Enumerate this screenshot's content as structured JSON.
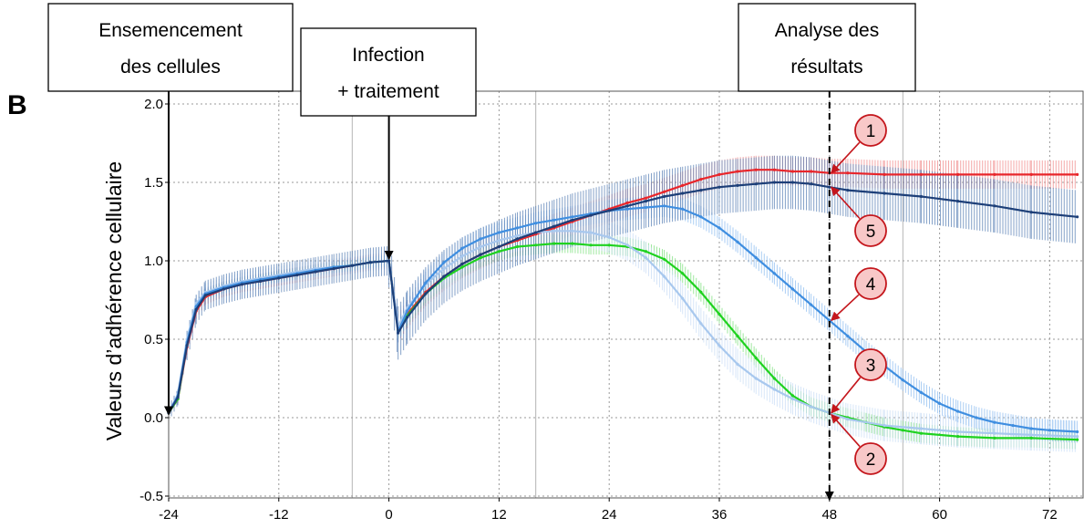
{
  "panel_label": "B",
  "annotations": {
    "seeding": [
      "Ensemencement",
      "des cellules"
    ],
    "infection": [
      "Infection",
      "+ traitement"
    ],
    "analysis": [
      "Analyse des",
      "résultats"
    ]
  },
  "chart_data": {
    "type": "line",
    "title": "",
    "xlabel": "",
    "ylabel": "Valeurs d’adhérence cellulaire",
    "xlim": [
      -24,
      75
    ],
    "ylim": [
      -0.5,
      2.05
    ],
    "xticks": [
      -24,
      -12,
      0,
      12,
      24,
      36,
      48,
      60,
      72
    ],
    "xtick_labels": [
      "-24",
      "-12",
      "0",
      "12",
      "24",
      "36",
      "48",
      "60",
      "72"
    ],
    "yticks": [
      -0.5,
      0.0,
      0.5,
      1.0,
      1.5,
      2.0
    ],
    "ytick_labels": [
      "-0.5",
      "0.0",
      "0.5",
      "1.0",
      "1.5",
      "2.0"
    ],
    "grid": true,
    "event_markers_x": [
      -24,
      0,
      48
    ],
    "series": [
      {
        "label": "1",
        "color": "#e8262b",
        "band_color": "#f08a8a",
        "points": [
          [
            -24,
            0.03
          ],
          [
            -23,
            0.12
          ],
          [
            -22,
            0.45
          ],
          [
            -21,
            0.68
          ],
          [
            -20,
            0.77
          ],
          [
            -18,
            0.82
          ],
          [
            -16,
            0.85
          ],
          [
            -14,
            0.87
          ],
          [
            -12,
            0.89
          ],
          [
            -10,
            0.91
          ],
          [
            -8,
            0.93
          ],
          [
            -6,
            0.95
          ],
          [
            -4,
            0.97
          ],
          [
            -2,
            0.99
          ],
          [
            0,
            1.0
          ],
          [
            1,
            0.57
          ],
          [
            2,
            0.66
          ],
          [
            4,
            0.8
          ],
          [
            6,
            0.9
          ],
          [
            8,
            0.98
          ],
          [
            10,
            1.04
          ],
          [
            12,
            1.09
          ],
          [
            14,
            1.13
          ],
          [
            16,
            1.17
          ],
          [
            18,
            1.21
          ],
          [
            20,
            1.25
          ],
          [
            22,
            1.29
          ],
          [
            24,
            1.33
          ],
          [
            26,
            1.37
          ],
          [
            28,
            1.4
          ],
          [
            30,
            1.44
          ],
          [
            32,
            1.48
          ],
          [
            34,
            1.52
          ],
          [
            36,
            1.55
          ],
          [
            38,
            1.57
          ],
          [
            40,
            1.58
          ],
          [
            42,
            1.58
          ],
          [
            44,
            1.57
          ],
          [
            46,
            1.57
          ],
          [
            48,
            1.56
          ],
          [
            50,
            1.56
          ],
          [
            54,
            1.55
          ],
          [
            58,
            1.55
          ],
          [
            62,
            1.55
          ],
          [
            66,
            1.55
          ],
          [
            70,
            1.55
          ],
          [
            75,
            1.55
          ]
        ],
        "err": 0.09
      },
      {
        "label": "2",
        "color": "#1fd21f",
        "band_color": "#7fe07f",
        "points": [
          [
            -24,
            0.03
          ],
          [
            -23,
            0.12
          ],
          [
            -22,
            0.47
          ],
          [
            -21,
            0.7
          ],
          [
            -20,
            0.78
          ],
          [
            -18,
            0.83
          ],
          [
            -16,
            0.86
          ],
          [
            -14,
            0.88
          ],
          [
            -12,
            0.9
          ],
          [
            -10,
            0.92
          ],
          [
            -8,
            0.94
          ],
          [
            -6,
            0.96
          ],
          [
            -4,
            0.97
          ],
          [
            -2,
            0.99
          ],
          [
            0,
            1.0
          ],
          [
            1,
            0.56
          ],
          [
            2,
            0.65
          ],
          [
            4,
            0.79
          ],
          [
            6,
            0.89
          ],
          [
            8,
            0.96
          ],
          [
            10,
            1.02
          ],
          [
            12,
            1.06
          ],
          [
            14,
            1.09
          ],
          [
            16,
            1.1
          ],
          [
            18,
            1.11
          ],
          [
            20,
            1.11
          ],
          [
            22,
            1.1
          ],
          [
            24,
            1.1
          ],
          [
            26,
            1.09
          ],
          [
            28,
            1.06
          ],
          [
            30,
            1.01
          ],
          [
            32,
            0.92
          ],
          [
            34,
            0.8
          ],
          [
            36,
            0.66
          ],
          [
            38,
            0.52
          ],
          [
            40,
            0.38
          ],
          [
            42,
            0.25
          ],
          [
            44,
            0.14
          ],
          [
            46,
            0.07
          ],
          [
            48,
            0.03
          ],
          [
            50,
            0.0
          ],
          [
            52,
            -0.03
          ],
          [
            54,
            -0.06
          ],
          [
            56,
            -0.08
          ],
          [
            58,
            -0.1
          ],
          [
            62,
            -0.12
          ],
          [
            66,
            -0.13
          ],
          [
            70,
            -0.13
          ],
          [
            75,
            -0.14
          ]
        ],
        "err": 0.06
      },
      {
        "label": "3",
        "color": "#a8c8ee",
        "band_color": "#c9ddf5",
        "points": [
          [
            -24,
            0.03
          ],
          [
            -23,
            0.15
          ],
          [
            -22,
            0.5
          ],
          [
            -21,
            0.73
          ],
          [
            -20,
            0.8
          ],
          [
            -18,
            0.84
          ],
          [
            -16,
            0.87
          ],
          [
            -14,
            0.89
          ],
          [
            -12,
            0.91
          ],
          [
            -10,
            0.93
          ],
          [
            -8,
            0.95
          ],
          [
            -6,
            0.96
          ],
          [
            -4,
            0.97
          ],
          [
            -2,
            0.99
          ],
          [
            0,
            1.0
          ],
          [
            1,
            0.58
          ],
          [
            2,
            0.7
          ],
          [
            4,
            0.85
          ],
          [
            6,
            0.95
          ],
          [
            8,
            1.03
          ],
          [
            10,
            1.09
          ],
          [
            12,
            1.13
          ],
          [
            14,
            1.16
          ],
          [
            16,
            1.18
          ],
          [
            18,
            1.19
          ],
          [
            20,
            1.19
          ],
          [
            22,
            1.18
          ],
          [
            24,
            1.15
          ],
          [
            26,
            1.1
          ],
          [
            28,
            1.02
          ],
          [
            30,
            0.9
          ],
          [
            32,
            0.76
          ],
          [
            34,
            0.6
          ],
          [
            36,
            0.46
          ],
          [
            38,
            0.34
          ],
          [
            40,
            0.25
          ],
          [
            42,
            0.18
          ],
          [
            44,
            0.12
          ],
          [
            46,
            0.07
          ],
          [
            48,
            0.03
          ],
          [
            50,
            -0.01
          ],
          [
            54,
            -0.05
          ],
          [
            58,
            -0.07
          ],
          [
            62,
            -0.09
          ],
          [
            66,
            -0.1
          ],
          [
            70,
            -0.11
          ],
          [
            75,
            -0.12
          ]
        ],
        "err": 0.1
      },
      {
        "label": "4",
        "color": "#3f8ee0",
        "band_color": "#8fbdf0",
        "points": [
          [
            -24,
            0.03
          ],
          [
            -23,
            0.14
          ],
          [
            -22,
            0.48
          ],
          [
            -21,
            0.71
          ],
          [
            -20,
            0.79
          ],
          [
            -18,
            0.83
          ],
          [
            -16,
            0.86
          ],
          [
            -14,
            0.88
          ],
          [
            -12,
            0.9
          ],
          [
            -10,
            0.92
          ],
          [
            -8,
            0.94
          ],
          [
            -6,
            0.96
          ],
          [
            -4,
            0.97
          ],
          [
            -2,
            0.99
          ],
          [
            0,
            1.0
          ],
          [
            1,
            0.55
          ],
          [
            2,
            0.68
          ],
          [
            4,
            0.86
          ],
          [
            6,
            0.99
          ],
          [
            8,
            1.08
          ],
          [
            10,
            1.14
          ],
          [
            12,
            1.18
          ],
          [
            14,
            1.21
          ],
          [
            16,
            1.24
          ],
          [
            18,
            1.26
          ],
          [
            20,
            1.28
          ],
          [
            22,
            1.3
          ],
          [
            24,
            1.32
          ],
          [
            26,
            1.33
          ],
          [
            28,
            1.34
          ],
          [
            30,
            1.35
          ],
          [
            32,
            1.33
          ],
          [
            34,
            1.28
          ],
          [
            36,
            1.21
          ],
          [
            38,
            1.12
          ],
          [
            40,
            1.02
          ],
          [
            42,
            0.92
          ],
          [
            44,
            0.82
          ],
          [
            46,
            0.72
          ],
          [
            48,
            0.62
          ],
          [
            50,
            0.52
          ],
          [
            52,
            0.42
          ],
          [
            54,
            0.33
          ],
          [
            56,
            0.24
          ],
          [
            58,
            0.16
          ],
          [
            60,
            0.09
          ],
          [
            62,
            0.04
          ],
          [
            64,
            0.0
          ],
          [
            66,
            -0.03
          ],
          [
            68,
            -0.05
          ],
          [
            70,
            -0.07
          ],
          [
            72,
            -0.08
          ],
          [
            75,
            -0.09
          ]
        ],
        "err": 0.07
      },
      {
        "label": "5",
        "color": "#1d3f78",
        "band_color": "#5b82b5",
        "points": [
          [
            -24,
            0.03
          ],
          [
            -23,
            0.13
          ],
          [
            -22,
            0.46
          ],
          [
            -21,
            0.69
          ],
          [
            -20,
            0.78
          ],
          [
            -18,
            0.82
          ],
          [
            -16,
            0.85
          ],
          [
            -14,
            0.87
          ],
          [
            -12,
            0.89
          ],
          [
            -10,
            0.91
          ],
          [
            -8,
            0.93
          ],
          [
            -6,
            0.95
          ],
          [
            -4,
            0.97
          ],
          [
            -2,
            0.99
          ],
          [
            0,
            1.0
          ],
          [
            1,
            0.54
          ],
          [
            2,
            0.64
          ],
          [
            4,
            0.79
          ],
          [
            6,
            0.9
          ],
          [
            8,
            0.98
          ],
          [
            10,
            1.04
          ],
          [
            12,
            1.09
          ],
          [
            14,
            1.14
          ],
          [
            16,
            1.18
          ],
          [
            18,
            1.22
          ],
          [
            20,
            1.26
          ],
          [
            22,
            1.29
          ],
          [
            24,
            1.32
          ],
          [
            26,
            1.35
          ],
          [
            28,
            1.38
          ],
          [
            30,
            1.41
          ],
          [
            32,
            1.43
          ],
          [
            34,
            1.45
          ],
          [
            36,
            1.47
          ],
          [
            38,
            1.48
          ],
          [
            40,
            1.49
          ],
          [
            42,
            1.5
          ],
          [
            44,
            1.5
          ],
          [
            46,
            1.49
          ],
          [
            48,
            1.47
          ],
          [
            50,
            1.45
          ],
          [
            54,
            1.43
          ],
          [
            58,
            1.41
          ],
          [
            62,
            1.38
          ],
          [
            66,
            1.35
          ],
          [
            70,
            1.31
          ],
          [
            75,
            1.28
          ]
        ],
        "err": 0.17
      }
    ],
    "callouts": [
      {
        "label": "1",
        "target": [
          48,
          1.56
        ]
      },
      {
        "label": "5",
        "target": [
          48,
          1.47
        ]
      },
      {
        "label": "4",
        "target": [
          48,
          0.62
        ]
      },
      {
        "label": "3",
        "target": [
          48,
          0.03
        ]
      },
      {
        "label": "2",
        "target": [
          48,
          0.02
        ]
      }
    ]
  }
}
